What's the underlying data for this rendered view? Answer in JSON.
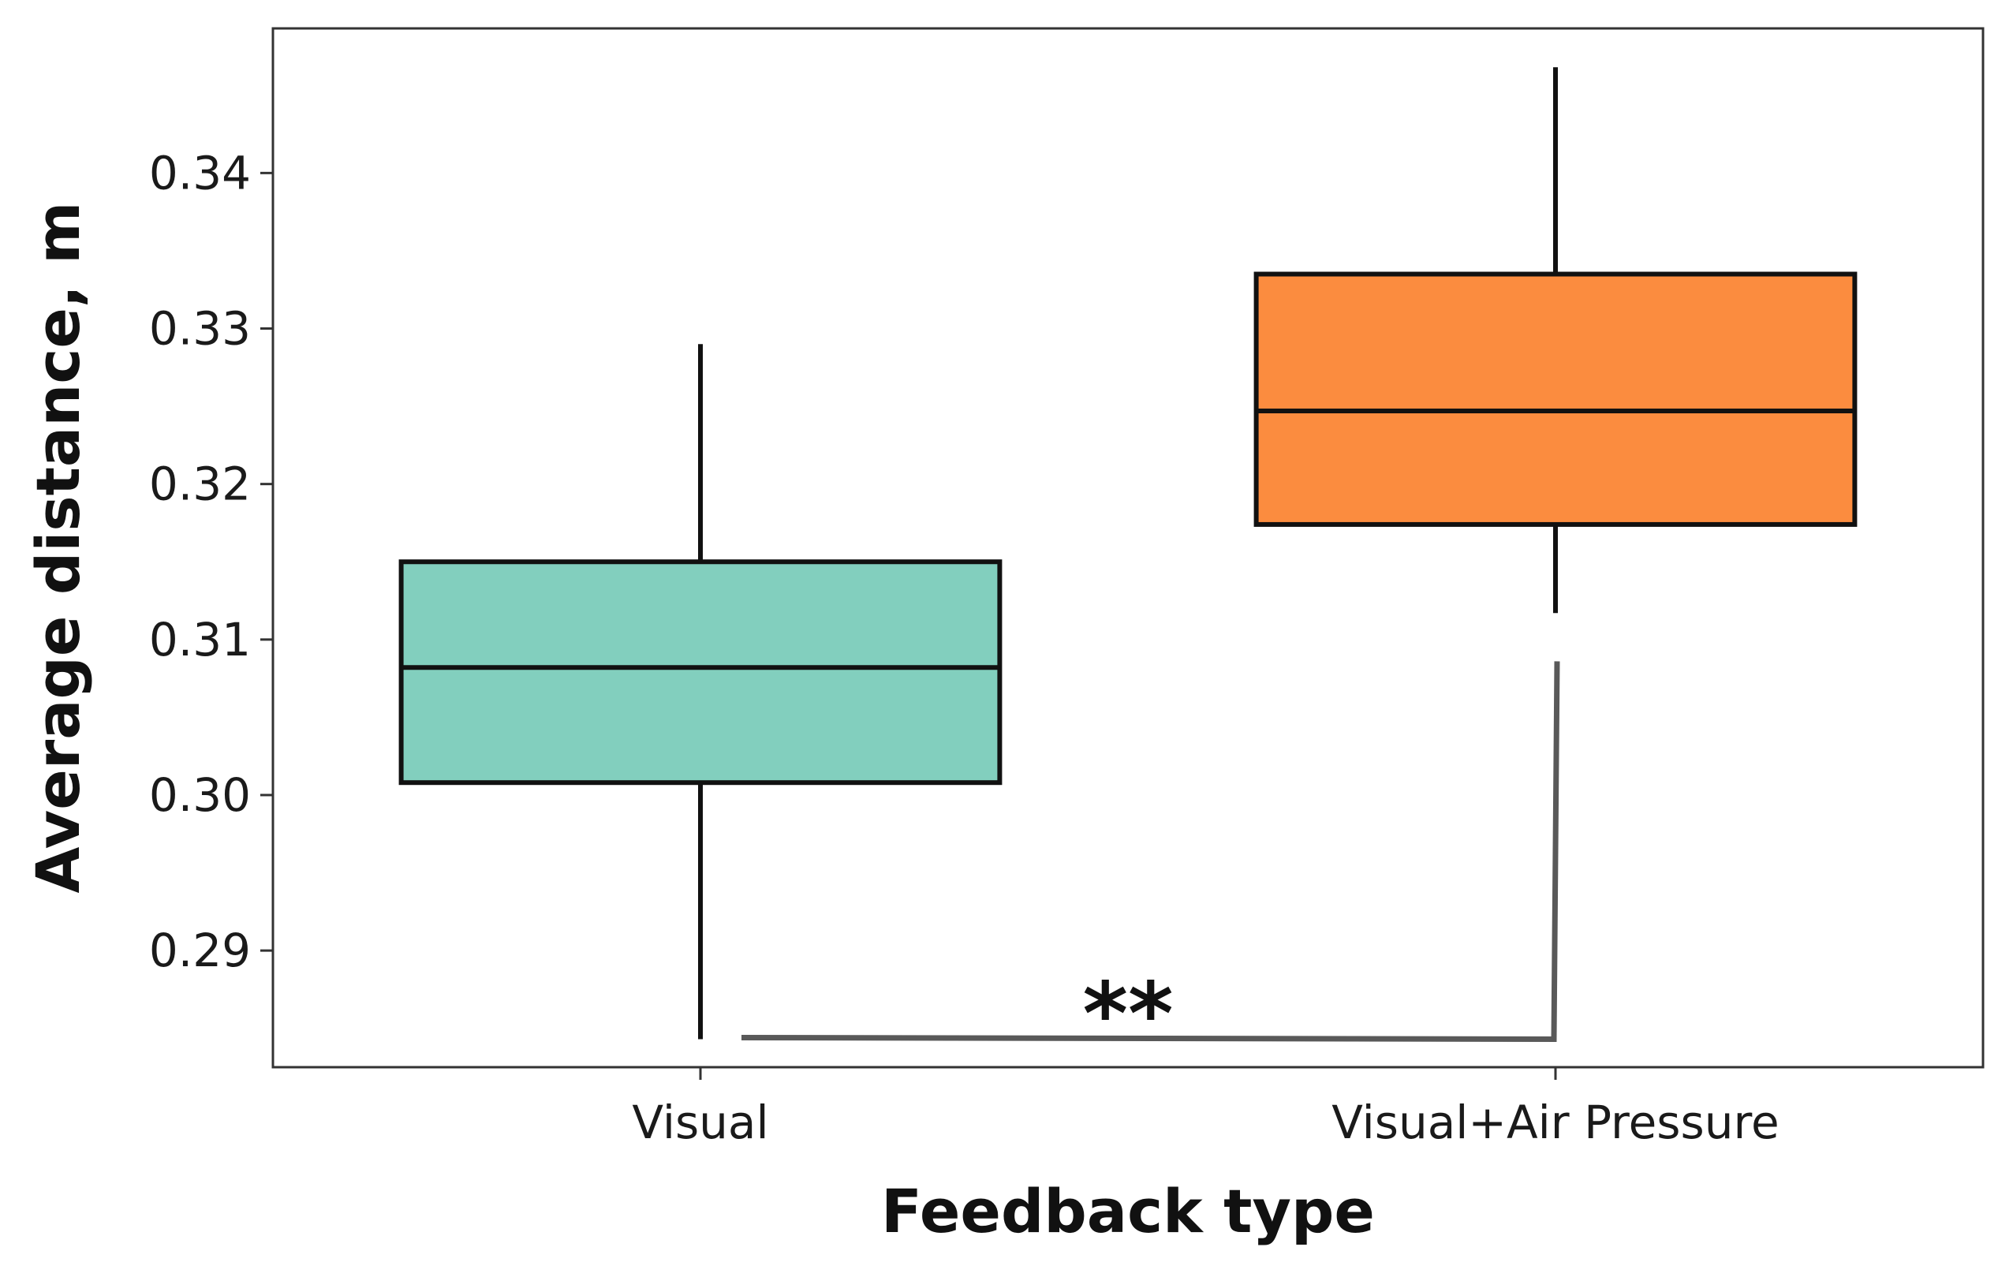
{
  "chart_data": {
    "type": "box",
    "title": "",
    "xlabel": "Feedback type",
    "ylabel": "Average distance, m",
    "ylim": [
      0.2825,
      0.3493
    ],
    "yticks": [
      "0.29",
      "0.30",
      "0.31",
      "0.32",
      "0.33",
      "0.34"
    ],
    "ytick_values": [
      0.29,
      0.3,
      0.31,
      0.32,
      0.33,
      0.34
    ],
    "categories": [
      "Visual",
      "Visual+Air Pressure"
    ],
    "boxes": [
      {
        "category": "Visual",
        "whisker_low": 0.2843,
        "q1": 0.3008,
        "median": 0.3082,
        "q3": 0.315,
        "whisker_high": 0.329,
        "color": "#82cfbe"
      },
      {
        "category": "Visual+Air Pressure",
        "whisker_low": 0.3117,
        "q1": 0.3174,
        "median": 0.3247,
        "q3": 0.3335,
        "whisker_high": 0.3468,
        "color": "#fb8c3f"
      }
    ],
    "significance": {
      "label": "**",
      "between": [
        "Visual",
        "Visual+Air Pressure"
      ],
      "color": "#595959"
    },
    "grid": false,
    "legend": "none"
  }
}
